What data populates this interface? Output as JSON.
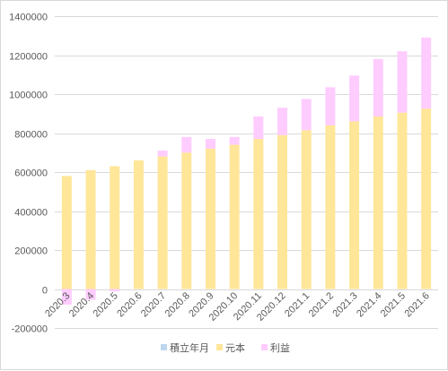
{
  "chart_data": {
    "type": "bar",
    "stacked": true,
    "title": "",
    "xlabel": "",
    "ylabel": "",
    "categories": [
      "2020.3",
      "2020.4",
      "2020.5",
      "2020.6",
      "2020.7",
      "2020.8",
      "2020.9",
      "2020.10",
      "2020.11",
      "2020.12",
      "2021.1",
      "2021.2",
      "2021.3",
      "2021.4",
      "2021.5",
      "2021.6"
    ],
    "ylim": [
      -200000,
      1400000
    ],
    "yticks": [
      -200000,
      0,
      200000,
      400000,
      600000,
      800000,
      1000000,
      1200000,
      1400000
    ],
    "grid": true,
    "legend_position": "bottom",
    "series": [
      {
        "name": "積立年月",
        "color": "#BDD7EE",
        "values": [
          0,
          0,
          0,
          0,
          0,
          0,
          0,
          0,
          0,
          0,
          0,
          0,
          0,
          0,
          0,
          0
        ]
      },
      {
        "name": "元本",
        "color": "#FFE699",
        "values": [
          580000,
          610000,
          630000,
          660000,
          680000,
          700000,
          720000,
          740000,
          770000,
          790000,
          815000,
          840000,
          860000,
          885000,
          905000,
          925000
        ]
      },
      {
        "name": "利益",
        "color": "#FFCCFF",
        "values": [
          -80000,
          -55000,
          -12000,
          0,
          30000,
          80000,
          50000,
          40000,
          115000,
          140000,
          160000,
          195000,
          235000,
          295000,
          315000,
          365000
        ]
      }
    ]
  }
}
